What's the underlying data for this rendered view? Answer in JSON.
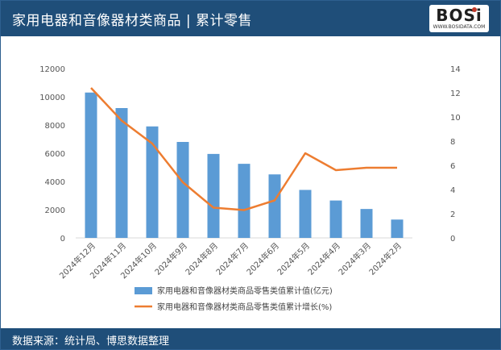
{
  "header": {
    "title": "家用电器和音像器材类商品 | 累计零售"
  },
  "logo": {
    "text": "BOSi",
    "subtext": "WWW.BOSIDATA.COM"
  },
  "footer": {
    "source": "数据来源：统计局、博思数据整理"
  },
  "colors": {
    "header_bg": "#1f4e79",
    "bar": "#5b9bd5",
    "line": "#ed7d31"
  },
  "chart_data": {
    "type": "bar",
    "categories": [
      "2024年12月",
      "2024年11月",
      "2024年10月",
      "2024年9月",
      "2024年8月",
      "2024年7月",
      "2024年6月",
      "2024年5月",
      "2024年4月",
      "2024年3月",
      "2024年2月"
    ],
    "series": [
      {
        "name": "家用电器和音像器材类商品零售类值累计值(亿元)",
        "type": "bar",
        "axis": "left",
        "values": [
          10300,
          9200,
          7900,
          6800,
          5950,
          5250,
          4500,
          3400,
          2650,
          2050,
          1300
        ]
      },
      {
        "name": "家用电器和音像器材类商品零售类值累计增长(%)",
        "type": "line",
        "axis": "right",
        "values": [
          12.4,
          9.7,
          7.8,
          4.6,
          2.5,
          2.3,
          3.1,
          7.0,
          5.6,
          5.8,
          5.8
        ]
      }
    ],
    "y_left": {
      "min": 0,
      "max": 12000,
      "ticks": [
        0,
        2000,
        4000,
        6000,
        8000,
        10000,
        12000
      ]
    },
    "y_right": {
      "min": 0,
      "max": 14,
      "ticks": [
        0,
        2,
        4,
        6,
        8,
        10,
        12,
        14
      ]
    },
    "legend": "bottom",
    "grid": false
  }
}
